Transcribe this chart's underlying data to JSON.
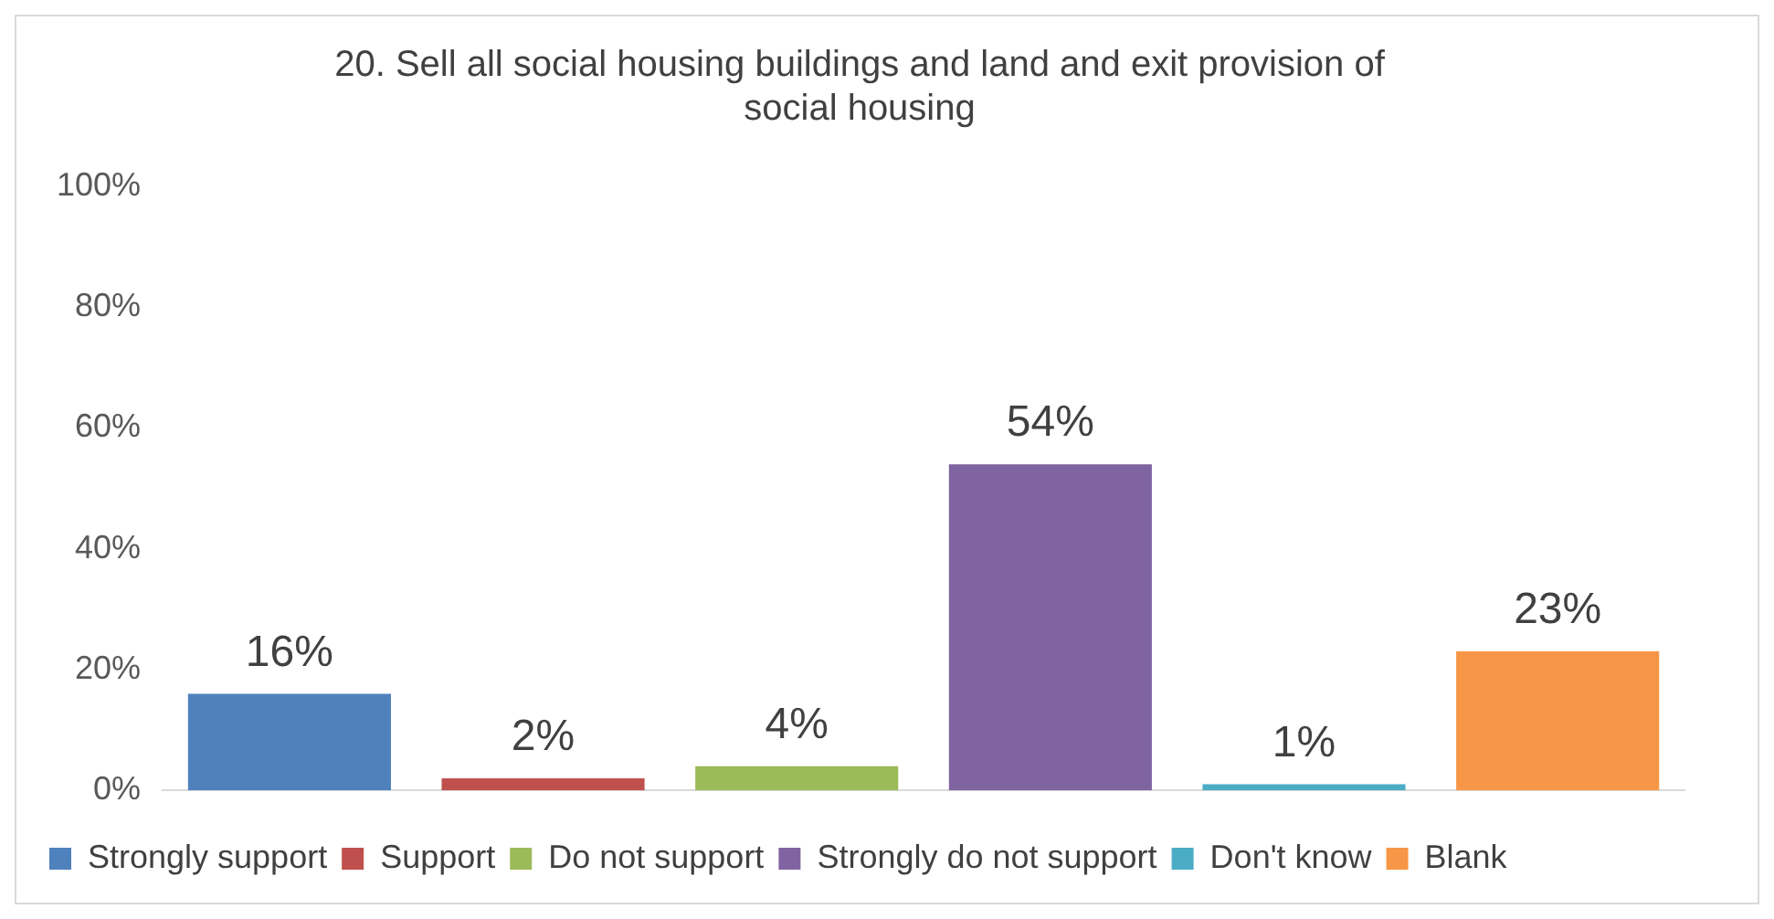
{
  "chart_data": {
    "type": "bar",
    "title": "20. Sell all social housing buildings and land and exit provision of social housing",
    "categories": [
      null,
      null,
      null,
      null,
      null,
      null
    ],
    "series": [
      {
        "name": "Strongly support",
        "color": "#4f81bd",
        "values": [
          16,
          null,
          null,
          null,
          null,
          null
        ],
        "value_labels": [
          "16%",
          null,
          null,
          null,
          null,
          null
        ]
      },
      {
        "name": "Support",
        "color": "#c0504d",
        "values": [
          null,
          2,
          null,
          null,
          null,
          null
        ],
        "value_labels": [
          null,
          "2%",
          null,
          null,
          null,
          null
        ]
      },
      {
        "name": "Do not support",
        "color": "#9bbb59",
        "values": [
          null,
          null,
          4,
          null,
          null,
          null
        ],
        "value_labels": [
          null,
          null,
          "4%",
          null,
          null,
          null
        ]
      },
      {
        "name": "Strongly do not support",
        "color": "#8064a2",
        "values": [
          null,
          null,
          null,
          54,
          null,
          null
        ],
        "value_labels": [
          null,
          null,
          null,
          "54%",
          null,
          null
        ]
      },
      {
        "name": "Don't know",
        "color": "#4bacc6",
        "values": [
          null,
          null,
          null,
          null,
          1,
          null
        ],
        "value_labels": [
          null,
          null,
          null,
          null,
          "1%",
          null
        ]
      },
      {
        "name": "Blank",
        "color": "#f79646",
        "values": [
          null,
          null,
          null,
          null,
          null,
          23
        ],
        "value_labels": [
          null,
          null,
          null,
          null,
          null,
          "23%"
        ]
      }
    ],
    "ylim": [
      0,
      100
    ],
    "yticks": [
      {
        "value": 0,
        "label": "0%"
      },
      {
        "value": 20,
        "label": "20%"
      },
      {
        "value": 40,
        "label": "40%"
      },
      {
        "value": 60,
        "label": "60%"
      },
      {
        "value": 80,
        "label": "80%"
      },
      {
        "value": 100,
        "label": "100%"
      }
    ],
    "grid": false,
    "legend": "bottom"
  }
}
